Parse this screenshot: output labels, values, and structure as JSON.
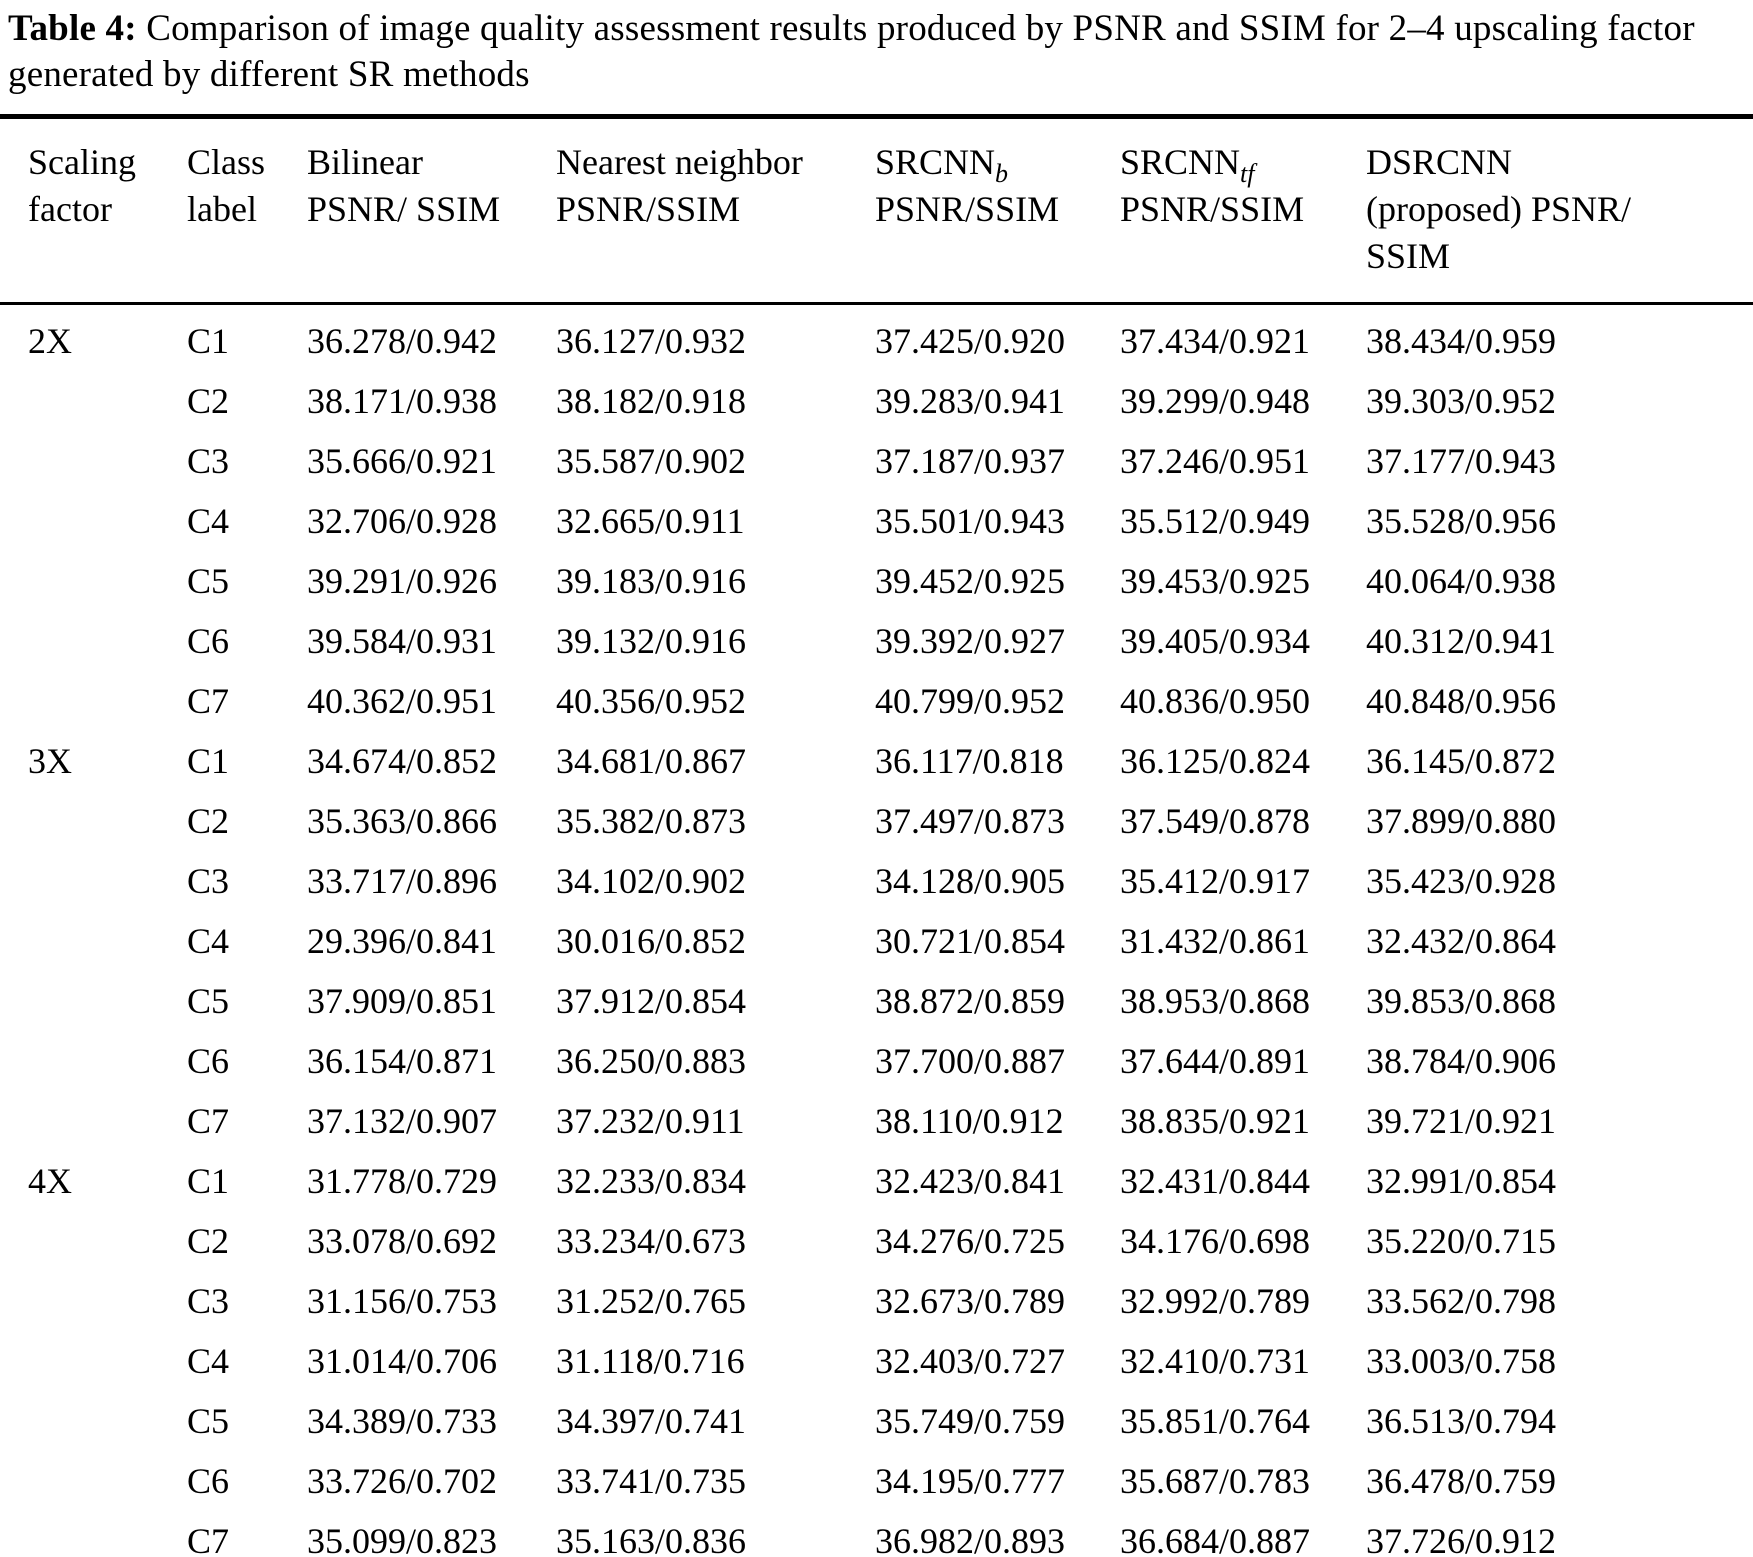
{
  "caption": {
    "label": "Table 4:",
    "text": "Comparison of image quality assessment results produced by PSNR and SSIM for 2–4 upscaling factor generated by different SR methods"
  },
  "table": {
    "header": {
      "columns": [
        {
          "line1": "Scaling",
          "line2": "factor"
        },
        {
          "line1": "Class",
          "line2": "label"
        },
        {
          "line1": "Bilinear",
          "line2": "PSNR/ SSIM"
        },
        {
          "line1": "Nearest neighbor",
          "line2": "PSNR/SSIM"
        },
        {
          "name": "SRCNN",
          "sub": "b",
          "line2": "PSNR/SSIM"
        },
        {
          "name": "SRCNN",
          "sub": "tf",
          "line2": "PSNR/SSIM"
        },
        {
          "line1": "DSRCNN",
          "line2": "(proposed) PSNR/",
          "line3": "SSIM"
        }
      ]
    },
    "groups": [
      {
        "factor": "2X",
        "rows": [
          {
            "class": "C1",
            "bilinear": "36.278/0.942",
            "nearest": "36.127/0.932",
            "srcnn_b": "37.425/0.920",
            "srcnn_tf": "37.434/0.921",
            "dsrcnn": "38.434/0.959"
          },
          {
            "class": "C2",
            "bilinear": "38.171/0.938",
            "nearest": "38.182/0.918",
            "srcnn_b": "39.283/0.941",
            "srcnn_tf": "39.299/0.948",
            "dsrcnn": "39.303/0.952"
          },
          {
            "class": "C3",
            "bilinear": "35.666/0.921",
            "nearest": "35.587/0.902",
            "srcnn_b": "37.187/0.937",
            "srcnn_tf": "37.246/0.951",
            "dsrcnn": "37.177/0.943"
          },
          {
            "class": "C4",
            "bilinear": "32.706/0.928",
            "nearest": "32.665/0.911",
            "srcnn_b": "35.501/0.943",
            "srcnn_tf": "35.512/0.949",
            "dsrcnn": "35.528/0.956"
          },
          {
            "class": "C5",
            "bilinear": "39.291/0.926",
            "nearest": "39.183/0.916",
            "srcnn_b": "39.452/0.925",
            "srcnn_tf": "39.453/0.925",
            "dsrcnn": "40.064/0.938"
          },
          {
            "class": "C6",
            "bilinear": "39.584/0.931",
            "nearest": "39.132/0.916",
            "srcnn_b": "39.392/0.927",
            "srcnn_tf": "39.405/0.934",
            "dsrcnn": "40.312/0.941"
          },
          {
            "class": "C7",
            "bilinear": "40.362/0.951",
            "nearest": "40.356/0.952",
            "srcnn_b": "40.799/0.952",
            "srcnn_tf": "40.836/0.950",
            "dsrcnn": "40.848/0.956"
          }
        ]
      },
      {
        "factor": "3X",
        "rows": [
          {
            "class": "C1",
            "bilinear": "34.674/0.852",
            "nearest": "34.681/0.867",
            "srcnn_b": "36.117/0.818",
            "srcnn_tf": "36.125/0.824",
            "dsrcnn": "36.145/0.872"
          },
          {
            "class": "C2",
            "bilinear": "35.363/0.866",
            "nearest": "35.382/0.873",
            "srcnn_b": "37.497/0.873",
            "srcnn_tf": "37.549/0.878",
            "dsrcnn": "37.899/0.880"
          },
          {
            "class": "C3",
            "bilinear": "33.717/0.896",
            "nearest": "34.102/0.902",
            "srcnn_b": "34.128/0.905",
            "srcnn_tf": "35.412/0.917",
            "dsrcnn": "35.423/0.928"
          },
          {
            "class": "C4",
            "bilinear": "29.396/0.841",
            "nearest": "30.016/0.852",
            "srcnn_b": "30.721/0.854",
            "srcnn_tf": "31.432/0.861",
            "dsrcnn": "32.432/0.864"
          },
          {
            "class": "C5",
            "bilinear": "37.909/0.851",
            "nearest": "37.912/0.854",
            "srcnn_b": "38.872/0.859",
            "srcnn_tf": "38.953/0.868",
            "dsrcnn": "39.853/0.868"
          },
          {
            "class": "C6",
            "bilinear": "36.154/0.871",
            "nearest": "36.250/0.883",
            "srcnn_b": "37.700/0.887",
            "srcnn_tf": "37.644/0.891",
            "dsrcnn": "38.784/0.906"
          },
          {
            "class": "C7",
            "bilinear": "37.132/0.907",
            "nearest": "37.232/0.911",
            "srcnn_b": "38.110/0.912",
            "srcnn_tf": "38.835/0.921",
            "dsrcnn": "39.721/0.921"
          }
        ]
      },
      {
        "factor": "4X",
        "rows": [
          {
            "class": "C1",
            "bilinear": "31.778/0.729",
            "nearest": "32.233/0.834",
            "srcnn_b": "32.423/0.841",
            "srcnn_tf": "32.431/0.844",
            "dsrcnn": "32.991/0.854"
          },
          {
            "class": "C2",
            "bilinear": "33.078/0.692",
            "nearest": "33.234/0.673",
            "srcnn_b": "34.276/0.725",
            "srcnn_tf": "34.176/0.698",
            "dsrcnn": "35.220/0.715"
          },
          {
            "class": "C3",
            "bilinear": "31.156/0.753",
            "nearest": "31.252/0.765",
            "srcnn_b": "32.673/0.789",
            "srcnn_tf": "32.992/0.789",
            "dsrcnn": "33.562/0.798"
          },
          {
            "class": "C4",
            "bilinear": "31.014/0.706",
            "nearest": "31.118/0.716",
            "srcnn_b": "32.403/0.727",
            "srcnn_tf": "32.410/0.731",
            "dsrcnn": "33.003/0.758"
          },
          {
            "class": "C5",
            "bilinear": "34.389/0.733",
            "nearest": "34.397/0.741",
            "srcnn_b": "35.749/0.759",
            "srcnn_tf": "35.851/0.764",
            "dsrcnn": "36.513/0.794"
          },
          {
            "class": "C6",
            "bilinear": "33.726/0.702",
            "nearest": "33.741/0.735",
            "srcnn_b": "34.195/0.777",
            "srcnn_tf": "35.687/0.783",
            "dsrcnn": "36.478/0.759"
          },
          {
            "class": "C7",
            "bilinear": "35.099/0.823",
            "nearest": "35.163/0.836",
            "srcnn_b": "36.982/0.893",
            "srcnn_tf": "36.684/0.887",
            "dsrcnn": "37.726/0.912"
          }
        ]
      }
    ]
  }
}
